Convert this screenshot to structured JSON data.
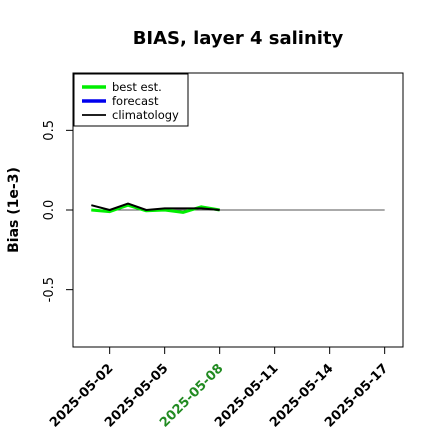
{
  "chart_data": {
    "type": "line",
    "title": "BIAS, layer 4 salinity",
    "xlabel": "",
    "ylabel": "Bias (1e-3)",
    "xlim": [
      "2025-04-30",
      "2025-05-18"
    ],
    "ylim": [
      -0.86,
      0.86
    ],
    "yticks": [
      -0.5,
      0.0,
      0.5
    ],
    "ytick_labels": [
      "-0.5",
      "0.0",
      "0.5"
    ],
    "xticks": [
      "2025-05-02",
      "2025-05-05",
      "2025-05-08",
      "2025-05-11",
      "2025-05-14",
      "2025-05-17"
    ],
    "xtick_colors": [
      "#000000",
      "#000000",
      "#228B22",
      "#000000",
      "#000000",
      "#000000"
    ],
    "grid": false,
    "legend_position": "top-left",
    "reference_line": {
      "y": 0.0,
      "x_from": "2025-05-01",
      "x_to": "2025-05-17"
    },
    "series": [
      {
        "name": "best est.",
        "color": "#00ee00",
        "x": [
          "2025-05-01",
          "2025-05-02",
          "2025-05-03",
          "2025-05-04",
          "2025-05-05",
          "2025-05-06",
          "2025-05-07",
          "2025-05-08"
        ],
        "values": [
          0.0,
          -0.01,
          0.03,
          -0.005,
          0.0,
          -0.015,
          0.02,
          0.0
        ]
      },
      {
        "name": "forecast",
        "color": "#0000ee",
        "x": [],
        "values": []
      },
      {
        "name": "climatology",
        "color": "#000000",
        "x": [
          "2025-05-01",
          "2025-05-02",
          "2025-05-03",
          "2025-05-04",
          "2025-05-05",
          "2025-05-06",
          "2025-05-07",
          "2025-05-08"
        ],
        "values": [
          0.03,
          0.0,
          0.04,
          0.0,
          0.01,
          0.01,
          0.01,
          0.0
        ]
      }
    ]
  }
}
